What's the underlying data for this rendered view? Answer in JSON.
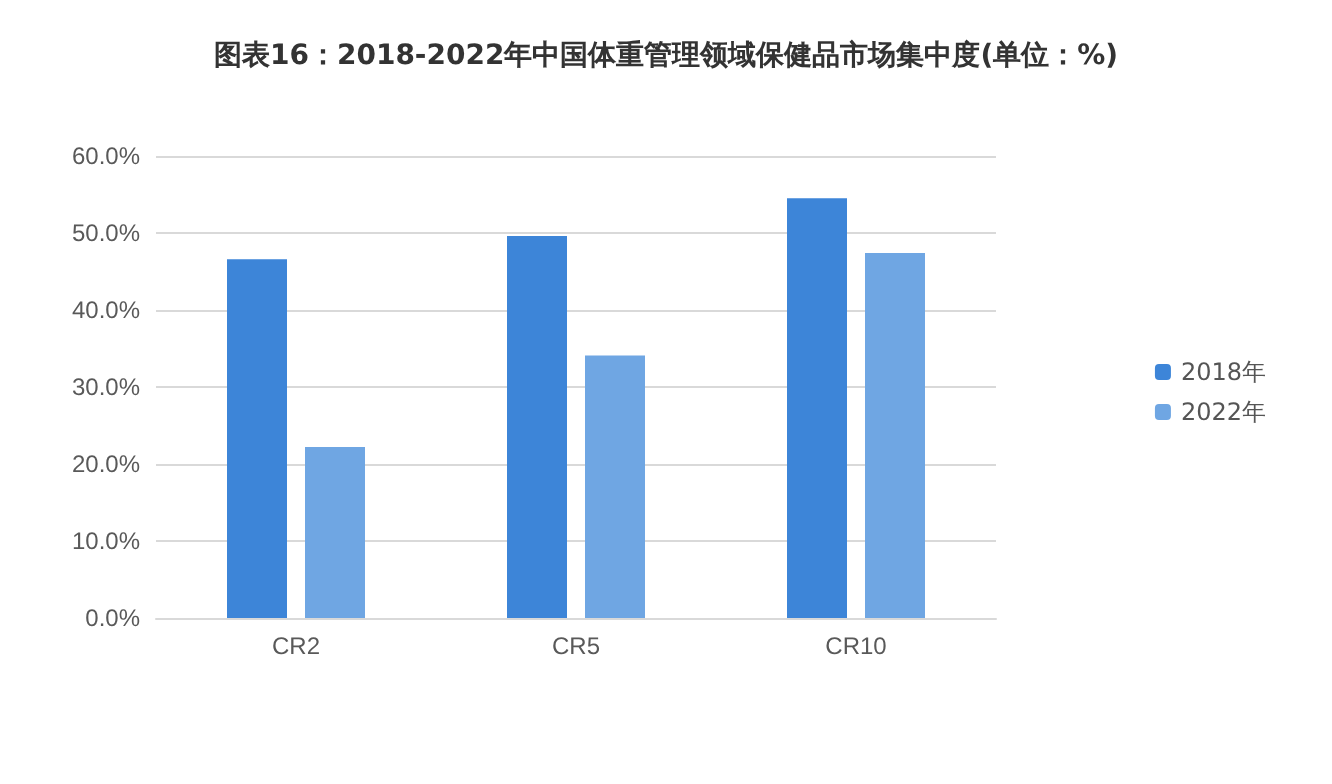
{
  "chart_data": {
    "type": "bar",
    "title": "图表16：2018-2022年中国体重管理领域保健品市场集中度(单位：%)",
    "categories": [
      "CR2",
      "CR5",
      "CR10"
    ],
    "series": [
      {
        "name": "2018年",
        "color": "#3d85d8",
        "values": [
          46.6,
          49.6,
          54.5
        ]
      },
      {
        "name": "2022年",
        "color": "#6fa6e3",
        "values": [
          22.2,
          34.1,
          47.4
        ]
      }
    ],
    "ylim": [
      0,
      60
    ],
    "yticks": [
      {
        "value": 0,
        "label": "0.0%"
      },
      {
        "value": 10,
        "label": "10.0%"
      },
      {
        "value": 20,
        "label": "20.0%"
      },
      {
        "value": 30,
        "label": "30.0%"
      },
      {
        "value": 40,
        "label": "40.0%"
      },
      {
        "value": 50,
        "label": "50.0%"
      },
      {
        "value": 60,
        "label": "60.0%"
      }
    ],
    "grid": "y",
    "legend": "right"
  }
}
